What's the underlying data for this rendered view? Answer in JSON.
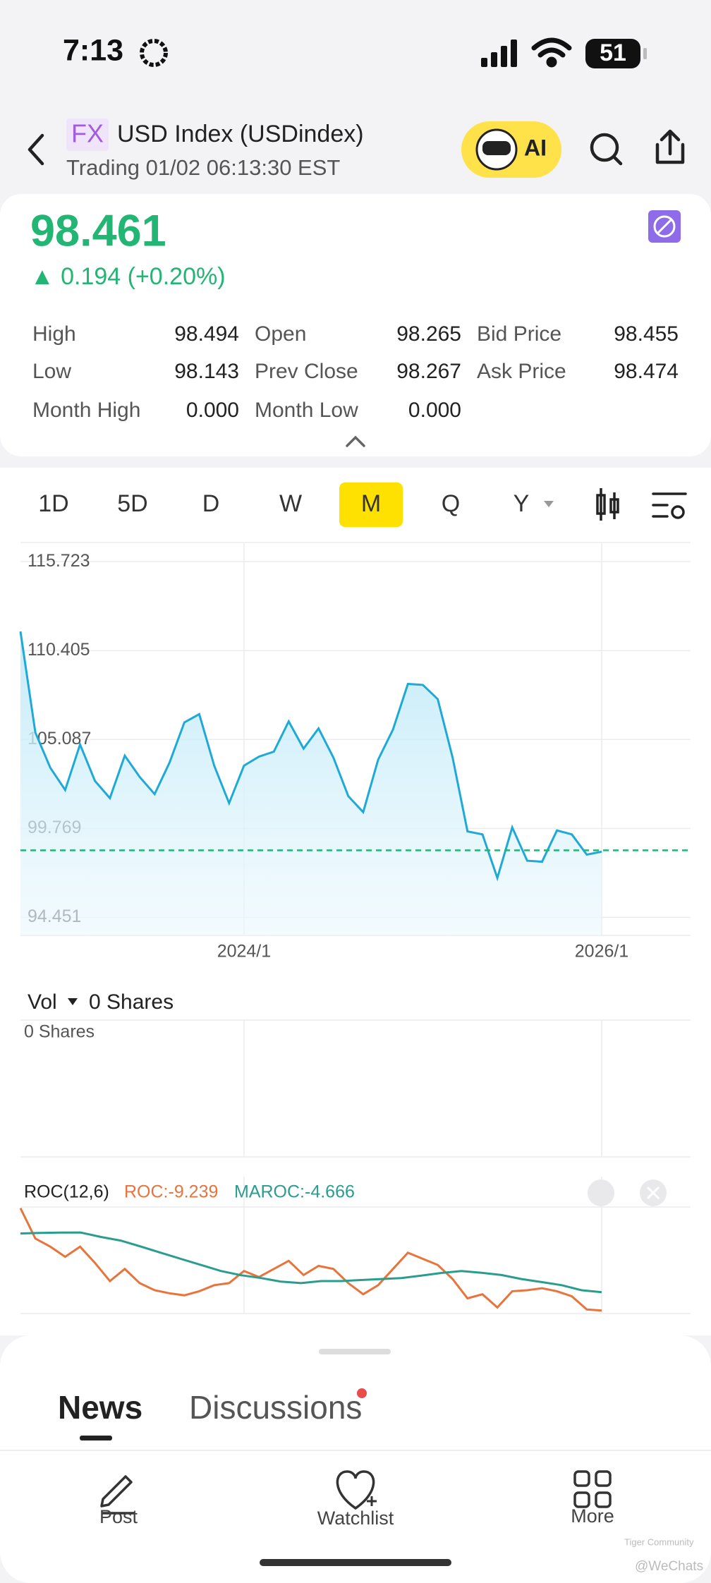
{
  "status_bar": {
    "time": "7:13",
    "battery": "51"
  },
  "header": {
    "badge": "FX",
    "title": "USD Index (USDindex)",
    "subtitle": "Trading 01/02 06:13:30 EST",
    "ai_button": "AI"
  },
  "quote": {
    "price": 98.461,
    "change": "▲ 0.194 (+0.20%)",
    "color": "#22b573",
    "stats": [
      [
        {
          "label": "High",
          "value": "98.494"
        },
        {
          "label": "Open",
          "value": "98.265"
        },
        {
          "label": "Bid Price",
          "value": "98.455"
        }
      ],
      [
        {
          "label": "Low",
          "value": "98.143"
        },
        {
          "label": "Prev Close",
          "value": "98.267"
        },
        {
          "label": "Ask Price",
          "value": "98.474"
        }
      ],
      [
        {
          "label": "Month High",
          "value": "0.000"
        },
        {
          "label": "Month Low",
          "value": "0.000"
        }
      ]
    ]
  },
  "period_tabs": {
    "tabs": [
      "1D",
      "5D",
      "D",
      "W",
      "M",
      "Q",
      "Y"
    ],
    "selected": 4
  },
  "price_chart": {
    "type": "line",
    "color": "#1fa9d6",
    "ylim": [
      93.37,
      116.87
    ],
    "yticks": [
      94.451,
      99.769,
      105.087,
      110.405,
      115.723
    ],
    "categories": [
      null,
      null,
      null,
      null,
      null,
      null,
      null,
      null,
      null,
      null,
      null,
      null,
      null,
      null,
      null,
      "2024/1",
      null,
      null,
      null,
      null,
      null,
      null,
      null,
      null,
      null,
      null,
      null,
      null,
      null,
      null,
      null,
      null,
      null,
      null,
      null,
      null,
      null,
      null,
      null,
      "2026/1"
    ],
    "values": [
      111.55,
      105.51,
      103.4,
      102.07,
      104.79,
      102.61,
      101.58,
      104.12,
      102.85,
      101.82,
      103.7,
      106.11,
      106.6,
      103.52,
      101.28,
      103.52,
      104.06,
      104.36,
      106.17,
      104.54,
      105.75,
      104.0,
      101.7,
      100.74,
      103.88,
      105.69,
      108.41,
      108.35,
      107.5,
      104.0,
      99.59,
      99.41,
      96.81,
      99.83,
      97.84,
      97.78,
      99.65,
      99.41,
      98.2,
      98.38
    ]
  },
  "volume": {
    "title": "Vol",
    "value": "0 Shares",
    "axis_label": "0 Shares"
  },
  "roc_chart": {
    "type": "line",
    "title": "ROC(12,6)",
    "ylim": [
      -10,
      24.3
    ],
    "series": [
      {
        "name": "ROC:-9.239",
        "color": "#e8743b",
        "values": [
          16.41,
          8.79,
          6.76,
          4.22,
          6.76,
          2.7,
          -1.87,
          1.18,
          -2.38,
          -4.16,
          -4.92,
          -5.43,
          -4.41,
          -2.89,
          -2.38,
          0.67,
          -0.86,
          1.18,
          3.21,
          -0.35,
          1.94,
          1.18,
          -2.38,
          -5.18,
          -2.89,
          1.18,
          5.24,
          3.71,
          2.19,
          -1.36,
          -6.19,
          -5.18,
          -8.48,
          -4.41,
          -4.16,
          -3.65,
          -4.41,
          -5.68,
          -8.99,
          -9.239
        ]
      },
      {
        "name": "MAROC:-4.666",
        "color": "#2a9d8f",
        "values": [
          10.06,
          10.2,
          10.3,
          10.32,
          9.2,
          8.29,
          6.8,
          5.24,
          3.7,
          2.19,
          0.67,
          -0.4,
          -1.11,
          -2.0,
          -2.38,
          -1.87,
          -1.87,
          -1.6,
          -1.36,
          -1.11,
          -0.5,
          0.16,
          0.67,
          0.2,
          -0.35,
          -1.36,
          -2.12,
          -2.89,
          -4.16,
          -4.666
        ]
      }
    ]
  },
  "content_tabs": [
    "News",
    "Discussions"
  ],
  "bottom_nav": [
    "Post",
    "Watchlist",
    "More"
  ],
  "watermark": {
    "brand": "Tiger Community",
    "handle": "@WeChats"
  }
}
